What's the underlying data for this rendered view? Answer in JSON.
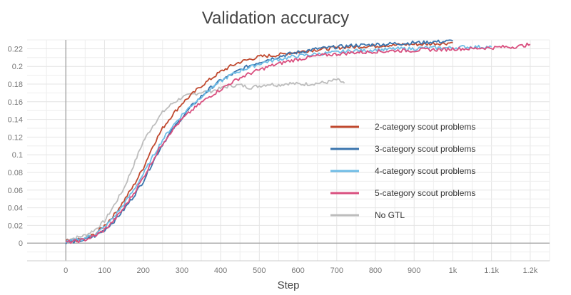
{
  "chart_data": {
    "type": "line",
    "title": "Validation accuracy",
    "xlabel": "Step",
    "ylabel": "",
    "xlim": [
      -100,
      1250
    ],
    "ylim": [
      -0.02,
      0.23
    ],
    "grid": true,
    "legend_position": "right",
    "x_ticks": [
      0,
      100,
      200,
      300,
      400,
      500,
      600,
      700,
      800,
      900,
      1000,
      1100,
      1200
    ],
    "x_tick_labels": [
      "0",
      "100",
      "200",
      "300",
      "400",
      "500",
      "600",
      "700",
      "800",
      "900",
      "1k",
      "1.1k",
      "1.2k"
    ],
    "y_ticks": [
      0,
      0.02,
      0.04,
      0.06,
      0.08,
      0.1,
      0.12,
      0.14,
      0.16,
      0.18,
      0.2,
      0.22
    ],
    "y_tick_labels": [
      "0",
      "0.02",
      "0.04",
      "0.06",
      "0.08",
      "0.1",
      "0.12",
      "0.14",
      "0.16",
      "0.18",
      "0.2",
      "0.22"
    ],
    "series": [
      {
        "name": "No GTL",
        "color": "#bdbdbd",
        "x": [
          0,
          25,
          50,
          75,
          100,
          125,
          150,
          175,
          200,
          225,
          250,
          275,
          300,
          325,
          350,
          375,
          400,
          425,
          450,
          475,
          500,
          525,
          550,
          575,
          600,
          625,
          650,
          675,
          700,
          720
        ],
        "y": [
          0.004,
          0.006,
          0.009,
          0.015,
          0.025,
          0.043,
          0.062,
          0.088,
          0.115,
          0.133,
          0.148,
          0.158,
          0.165,
          0.168,
          0.171,
          0.172,
          0.175,
          0.178,
          0.179,
          0.176,
          0.178,
          0.18,
          0.179,
          0.181,
          0.18,
          0.18,
          0.181,
          0.182,
          0.185,
          0.181
        ]
      },
      {
        "name": "2-category scout problems",
        "color": "#c0492f",
        "x": [
          0,
          25,
          50,
          75,
          100,
          125,
          150,
          175,
          200,
          225,
          250,
          275,
          300,
          325,
          350,
          375,
          400,
          425,
          450,
          475,
          500,
          525,
          550,
          575,
          600,
          625,
          650,
          675,
          700,
          725,
          750,
          775,
          800,
          825,
          850,
          875,
          900,
          925,
          950,
          975,
          1000
        ],
        "y": [
          0.002,
          0.003,
          0.005,
          0.01,
          0.02,
          0.032,
          0.048,
          0.065,
          0.085,
          0.11,
          0.13,
          0.145,
          0.158,
          0.168,
          0.178,
          0.186,
          0.194,
          0.2,
          0.205,
          0.208,
          0.211,
          0.212,
          0.213,
          0.215,
          0.216,
          0.218,
          0.219,
          0.22,
          0.221,
          0.222,
          0.222,
          0.223,
          0.223,
          0.224,
          0.224,
          0.225,
          0.225,
          0.225,
          0.226,
          0.226,
          0.227
        ]
      },
      {
        "name": "3-category scout problems",
        "color": "#3a74ad",
        "x": [
          0,
          25,
          50,
          75,
          100,
          125,
          150,
          175,
          200,
          225,
          250,
          275,
          300,
          325,
          350,
          375,
          400,
          425,
          450,
          475,
          500,
          525,
          550,
          575,
          600,
          625,
          650,
          675,
          700,
          725,
          750,
          775,
          800,
          825,
          850,
          875,
          900,
          925,
          950,
          975,
          1000
        ],
        "y": [
          0.001,
          0.002,
          0.004,
          0.008,
          0.015,
          0.025,
          0.038,
          0.053,
          0.07,
          0.092,
          0.112,
          0.128,
          0.142,
          0.155,
          0.166,
          0.176,
          0.184,
          0.19,
          0.196,
          0.201,
          0.205,
          0.208,
          0.211,
          0.214,
          0.216,
          0.218,
          0.22,
          0.221,
          0.222,
          0.223,
          0.224,
          0.224,
          0.225,
          0.225,
          0.226,
          0.226,
          0.227,
          0.227,
          0.228,
          0.228,
          0.229
        ]
      },
      {
        "name": "4-category scout problems",
        "color": "#6fbde6",
        "x": [
          0,
          25,
          50,
          75,
          100,
          125,
          150,
          175,
          200,
          225,
          250,
          275,
          300,
          325,
          350,
          375,
          400,
          425,
          450,
          475,
          500,
          525,
          550,
          575,
          600,
          625,
          650,
          675,
          700,
          725,
          750,
          775,
          800,
          825,
          850,
          875,
          900,
          925,
          950,
          975,
          1000,
          1025,
          1050,
          1075,
          1100
        ],
        "y": [
          0.002,
          0.003,
          0.006,
          0.01,
          0.018,
          0.03,
          0.044,
          0.06,
          0.078,
          0.098,
          0.117,
          0.132,
          0.145,
          0.156,
          0.166,
          0.175,
          0.183,
          0.19,
          0.195,
          0.199,
          0.203,
          0.206,
          0.208,
          0.21,
          0.212,
          0.213,
          0.214,
          0.215,
          0.216,
          0.217,
          0.218,
          0.218,
          0.219,
          0.219,
          0.22,
          0.22,
          0.22,
          0.221,
          0.221,
          0.221,
          0.221,
          0.222,
          0.222,
          0.222,
          0.222
        ]
      },
      {
        "name": "5-category scout problems",
        "color": "#d94f7f",
        "x": [
          0,
          25,
          50,
          75,
          100,
          125,
          150,
          175,
          200,
          225,
          250,
          275,
          300,
          325,
          350,
          375,
          400,
          425,
          450,
          475,
          500,
          525,
          550,
          575,
          600,
          625,
          650,
          675,
          700,
          725,
          750,
          775,
          800,
          825,
          850,
          875,
          900,
          925,
          950,
          975,
          1000,
          1025,
          1050,
          1075,
          1100,
          1125,
          1150,
          1175,
          1200
        ],
        "y": [
          0.001,
          0.002,
          0.004,
          0.008,
          0.015,
          0.026,
          0.04,
          0.056,
          0.074,
          0.094,
          0.113,
          0.128,
          0.14,
          0.15,
          0.159,
          0.167,
          0.174,
          0.181,
          0.187,
          0.192,
          0.196,
          0.2,
          0.203,
          0.206,
          0.208,
          0.21,
          0.212,
          0.213,
          0.214,
          0.215,
          0.216,
          0.216,
          0.217,
          0.217,
          0.218,
          0.218,
          0.218,
          0.219,
          0.219,
          0.219,
          0.22,
          0.22,
          0.22,
          0.221,
          0.221,
          0.222,
          0.222,
          0.223,
          0.225
        ]
      }
    ],
    "legend_order": [
      "2-category scout problems",
      "3-category scout problems",
      "4-category scout problems",
      "5-category scout problems",
      "No GTL"
    ]
  }
}
